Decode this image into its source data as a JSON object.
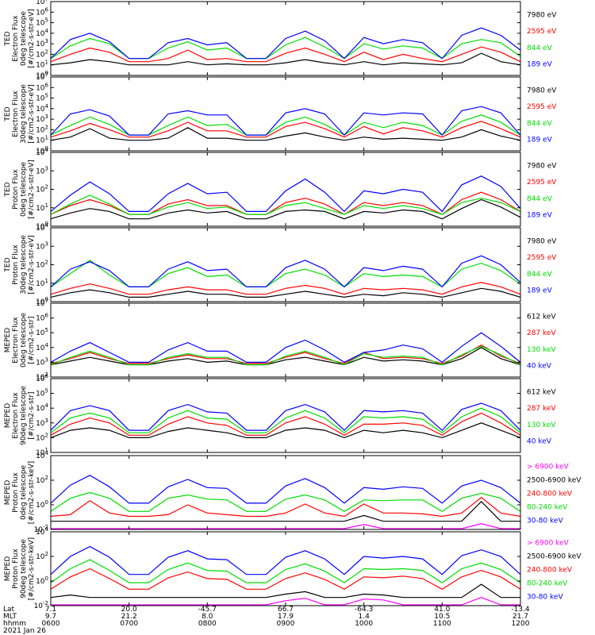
{
  "chart_data": [
    {
      "type": "line",
      "ylabel": [
        "TED",
        "Electron Flux",
        "0deg telescope",
        "[#/cm2-s-str-eV]"
      ],
      "ylog": [
        0,
        7
      ],
      "ytick_labels": [
        "10^0",
        "10^1",
        "10^2",
        "10^3",
        "10^4",
        "10^5",
        "10^6",
        "10^7"
      ],
      "series": [
        {
          "name": "7980 eV",
          "color": "#000000"
        },
        {
          "name": "2595 eV",
          "color": "#ff0000"
        },
        {
          "name": "844 eV",
          "color": "#00dd00"
        },
        {
          "name": "189 eV",
          "color": "#0000ff"
        }
      ],
      "levels": [
        [
          1.0,
          1.2,
          1.5,
          1.3,
          1.0,
          1.0,
          1.0,
          1.3,
          1.0,
          1.1,
          1.0,
          1.0,
          1.2,
          1.5,
          1.2,
          1.0,
          1.3,
          1.0,
          1.2,
          1.1,
          1.0,
          1.2,
          2.1,
          1.3,
          1.0
        ],
        [
          1.3,
          2.0,
          2.6,
          2.2,
          1.3,
          1.3,
          1.6,
          2.4,
          1.5,
          1.6,
          1.3,
          1.3,
          2.1,
          2.6,
          2.0,
          1.3,
          2.2,
          1.5,
          2.0,
          1.6,
          1.3,
          2.0,
          2.7,
          2.2,
          1.3
        ],
        [
          1.6,
          2.8,
          3.5,
          3.0,
          1.6,
          1.6,
          2.6,
          3.2,
          2.4,
          2.6,
          1.6,
          1.6,
          2.9,
          3.6,
          2.7,
          1.6,
          3.0,
          2.5,
          2.8,
          2.6,
          1.6,
          3.0,
          3.4,
          3.1,
          1.8
        ],
        [
          1.6,
          3.4,
          4.0,
          3.2,
          1.6,
          1.6,
          3.1,
          3.5,
          2.9,
          3.1,
          1.6,
          1.6,
          3.5,
          4.2,
          3.3,
          1.6,
          3.6,
          3.0,
          3.4,
          3.1,
          1.6,
          3.8,
          4.5,
          3.8,
          2.4
        ]
      ]
    },
    {
      "type": "line",
      "ylabel": [
        "TED",
        "Electron Flux",
        "30deg telescope",
        "[#/cm2-s-str-eV]"
      ],
      "ylog": [
        0,
        7
      ],
      "ytick_labels": [
        "10^0",
        "10^1",
        "10^2",
        "10^3",
        "10^4",
        "10^5",
        "10^6",
        "10^7"
      ],
      "series": [
        {
          "name": "7980 eV",
          "color": "#000000"
        },
        {
          "name": "2595 eV",
          "color": "#ff0000"
        },
        {
          "name": "844 eV",
          "color": "#00dd00"
        },
        {
          "name": "189 eV",
          "color": "#0000ff"
        }
      ],
      "levels": [
        [
          1.0,
          1.3,
          2.1,
          1.2,
          1.0,
          1.0,
          1.2,
          2.2,
          1.2,
          1.2,
          1.0,
          1.0,
          1.4,
          1.7,
          1.3,
          1.0,
          1.3,
          1.1,
          1.2,
          1.1,
          1.0,
          1.3,
          2.0,
          1.4,
          1.0
        ],
        [
          1.3,
          1.9,
          2.6,
          2.0,
          1.3,
          1.3,
          1.9,
          2.7,
          1.9,
          1.9,
          1.3,
          1.3,
          2.3,
          2.7,
          2.1,
          1.3,
          2.3,
          1.6,
          2.2,
          1.9,
          1.3,
          2.2,
          2.8,
          2.1,
          1.3
        ],
        [
          1.5,
          2.4,
          3.2,
          2.5,
          1.5,
          1.5,
          2.4,
          3.2,
          2.4,
          2.5,
          1.5,
          1.5,
          2.7,
          3.2,
          2.5,
          1.5,
          2.7,
          2.2,
          2.7,
          2.4,
          1.5,
          2.8,
          3.4,
          2.7,
          1.5
        ],
        [
          1.5,
          3.5,
          3.9,
          3.3,
          1.5,
          1.5,
          3.5,
          3.8,
          3.4,
          3.4,
          1.5,
          1.5,
          3.6,
          4.0,
          3.5,
          1.5,
          3.6,
          3.4,
          3.6,
          3.5,
          1.5,
          3.8,
          4.2,
          3.6,
          1.5
        ]
      ]
    },
    {
      "type": "line",
      "ylabel": [
        "TED",
        "Proton Flux",
        "0deg telescope",
        "[#/cm2-s-str-eV]"
      ],
      "ylog": [
        0,
        5
      ],
      "ytick_labels": [
        "10^0",
        "10^1",
        "10^2",
        "10^3",
        "10^4"
      ],
      "series": [
        {
          "name": "7980 eV",
          "color": "#000000"
        },
        {
          "name": "2595 eV",
          "color": "#ff0000"
        },
        {
          "name": "844 eV",
          "color": "#00dd00"
        },
        {
          "name": "189 eV",
          "color": "#0000ff"
        }
      ],
      "levels": [
        [
          0.5,
          0.9,
          1.2,
          1.0,
          0.5,
          0.5,
          0.9,
          1.1,
          0.9,
          1.0,
          0.5,
          0.5,
          1.0,
          1.1,
          1.0,
          0.5,
          1.0,
          0.9,
          1.1,
          1.0,
          0.5,
          1.2,
          1.8,
          1.3,
          0.6
        ],
        [
          0.8,
          1.4,
          1.8,
          1.4,
          0.8,
          0.8,
          1.5,
          1.8,
          1.4,
          1.4,
          0.8,
          0.8,
          1.6,
          1.9,
          1.5,
          0.8,
          1.6,
          1.4,
          1.6,
          1.4,
          0.8,
          1.8,
          2.3,
          1.8,
          1.0
        ],
        [
          0.8,
          1.5,
          2.1,
          1.5,
          0.8,
          0.8,
          1.3,
          1.6,
          1.2,
          1.3,
          0.8,
          0.8,
          1.4,
          1.6,
          1.2,
          0.8,
          1.4,
          1.2,
          1.4,
          1.2,
          0.8,
          1.6,
          1.9,
          1.6,
          1.0
        ],
        [
          1.0,
          2.1,
          3.0,
          2.2,
          1.0,
          1.0,
          2.2,
          2.9,
          2.2,
          2.3,
          1.0,
          1.0,
          2.4,
          3.2,
          2.3,
          1.0,
          2.4,
          2.2,
          2.5,
          2.3,
          1.0,
          2.8,
          3.4,
          2.7,
          1.2
        ]
      ]
    },
    {
      "type": "line",
      "ylabel": [
        "TED",
        "Proton Flux",
        "30deg telescope",
        "[#/cm2-s-str-eV]"
      ],
      "ylog": [
        0,
        5
      ],
      "ytick_labels": [
        "10^0",
        "10^1",
        "10^2",
        "10^3",
        "10^4"
      ],
      "series": [
        {
          "name": "7980 eV",
          "color": "#000000"
        },
        {
          "name": "2595 eV",
          "color": "#ff0000"
        },
        {
          "name": "844 eV",
          "color": "#00dd00"
        },
        {
          "name": "189 eV",
          "color": "#0000ff"
        }
      ],
      "levels": [
        [
          0.3,
          0.6,
          0.8,
          0.6,
          0.3,
          0.3,
          0.5,
          0.7,
          0.5,
          0.5,
          0.3,
          0.3,
          0.5,
          0.7,
          0.5,
          0.3,
          0.5,
          0.4,
          0.6,
          0.5,
          0.3,
          0.6,
          0.9,
          0.7,
          0.3
        ],
        [
          0.5,
          0.9,
          1.2,
          0.9,
          0.5,
          0.5,
          0.8,
          1.0,
          0.8,
          0.8,
          0.5,
          0.5,
          0.9,
          1.1,
          0.9,
          0.5,
          0.9,
          0.8,
          0.9,
          0.8,
          0.5,
          1.0,
          1.3,
          1.0,
          0.5
        ],
        [
          1.0,
          1.9,
          2.8,
          1.8,
          1.0,
          1.0,
          1.9,
          2.3,
          1.7,
          1.8,
          1.0,
          1.0,
          1.9,
          2.2,
          1.8,
          1.0,
          1.9,
          1.7,
          1.8,
          1.7,
          1.0,
          2.2,
          2.6,
          2.1,
          1.2
        ],
        [
          1.0,
          2.2,
          2.7,
          2.1,
          1.0,
          1.0,
          2.2,
          2.7,
          2.1,
          2.2,
          1.0,
          1.0,
          2.3,
          2.8,
          2.2,
          1.0,
          2.3,
          2.1,
          2.4,
          2.2,
          1.0,
          2.6,
          3.1,
          2.5,
          1.3
        ]
      ]
    },
    {
      "type": "line",
      "ylabel": [
        "MEPED",
        "Electron Flux",
        "0deg telescope",
        "[#/cm2-s-str]"
      ],
      "ylog": [
        1,
        7
      ],
      "ytick_labels": [
        "10^2",
        "10^3",
        "10^4",
        "10^5",
        "10^6",
        "10^7"
      ],
      "series": [
        {
          "name": "612 keV",
          "color": "#000000"
        },
        {
          "name": "287 keV",
          "color": "#ff0000"
        },
        {
          "name": "130 keV",
          "color": "#00dd00"
        },
        {
          "name": "40 keV",
          "color": "#0000ff"
        }
      ],
      "levels": [
        [
          2.0,
          2.3,
          2.6,
          2.3,
          2.0,
          2.0,
          2.3,
          2.5,
          2.2,
          2.3,
          2.0,
          2.0,
          2.4,
          2.6,
          2.3,
          2.0,
          2.6,
          2.3,
          2.4,
          2.3,
          2.0,
          2.5,
          3.4,
          2.5,
          2.0
        ],
        [
          2.1,
          2.5,
          3.0,
          2.5,
          2.1,
          2.1,
          2.5,
          2.8,
          2.5,
          2.5,
          2.1,
          2.1,
          2.6,
          3.0,
          2.5,
          2.1,
          3.0,
          2.5,
          2.6,
          2.5,
          2.1,
          2.7,
          3.6,
          2.7,
          2.1
        ],
        [
          2.0,
          2.6,
          3.1,
          2.6,
          2.0,
          2.0,
          2.6,
          2.9,
          2.6,
          2.6,
          2.0,
          2.0,
          2.7,
          3.1,
          2.6,
          2.0,
          2.9,
          2.6,
          2.7,
          2.6,
          2.0,
          2.8,
          3.5,
          2.8,
          2.0
        ],
        [
          2.2,
          3.1,
          3.8,
          3.0,
          2.2,
          2.2,
          3.2,
          3.8,
          3.1,
          3.1,
          2.2,
          2.2,
          3.4,
          4.0,
          3.2,
          2.2,
          3.0,
          3.2,
          3.6,
          3.3,
          2.2,
          3.5,
          4.6,
          3.5,
          2.2
        ]
      ]
    },
    {
      "type": "line",
      "ylabel": [
        "MEPED",
        "Electron Flux",
        "90deg telescope",
        "[#/cm2-s-str]"
      ],
      "ylog": [
        1,
        7
      ],
      "ytick_labels": [
        "10^1",
        "10^2",
        "10^3",
        "10^4",
        "10^5",
        "10^6"
      ],
      "series": [
        {
          "name": "612 keV",
          "color": "#000000"
        },
        {
          "name": "287 keV",
          "color": "#ff0000"
        },
        {
          "name": "130 keV",
          "color": "#00dd00"
        },
        {
          "name": "40 keV",
          "color": "#0000ff"
        }
      ],
      "levels": [
        [
          2.2,
          2.8,
          3.0,
          2.8,
          2.2,
          2.2,
          2.7,
          3.0,
          2.8,
          2.6,
          2.2,
          2.2,
          2.8,
          3.0,
          2.8,
          2.2,
          2.8,
          2.6,
          2.8,
          2.6,
          2.2,
          2.8,
          3.4,
          2.8,
          2.2
        ],
        [
          2.4,
          3.3,
          3.8,
          3.4,
          2.4,
          2.4,
          3.3,
          3.9,
          3.4,
          3.2,
          2.4,
          2.4,
          3.4,
          3.9,
          3.3,
          2.4,
          3.3,
          3.3,
          3.4,
          3.2,
          2.4,
          3.5,
          4.2,
          3.4,
          2.4
        ],
        [
          2.6,
          3.8,
          4.2,
          3.8,
          2.6,
          2.6,
          3.8,
          4.4,
          3.8,
          3.7,
          2.6,
          2.6,
          3.8,
          4.4,
          3.8,
          2.6,
          3.9,
          3.8,
          3.9,
          3.7,
          2.6,
          3.9,
          4.6,
          3.9,
          2.6
        ],
        [
          2.8,
          4.4,
          4.8,
          4.4,
          2.8,
          2.8,
          4.4,
          4.9,
          4.3,
          4.2,
          2.8,
          2.8,
          4.4,
          4.9,
          4.3,
          2.8,
          4.4,
          4.3,
          4.4,
          4.2,
          2.8,
          4.5,
          5.0,
          4.4,
          2.8
        ]
      ]
    },
    {
      "type": "line",
      "ylabel": [
        "MEPED",
        "Proton Flux",
        "0deg telescope",
        "[#/cm2-s-str-keV]"
      ],
      "ylog": [
        -3,
        6
      ],
      "ytick_labels": [
        "10^-2",
        "10^0",
        "10^2",
        "10^4"
      ],
      "series": [
        {
          "name": "> 6900 keV",
          "color": "#ff00ff"
        },
        {
          "name": "2500-6900 keV",
          "color": "#000000"
        },
        {
          "name": "240-800 keV",
          "color": "#ff0000"
        },
        {
          "name": "80-240 keV",
          "color": "#00dd00"
        },
        {
          "name": "30-80 keV",
          "color": "#0000ff"
        }
      ],
      "levels": [
        [
          -2.9,
          -2.9,
          -2.9,
          -2.9,
          -2.9,
          -2.9,
          -2.9,
          -2.9,
          -2.9,
          -2.9,
          -2.9,
          -2.9,
          -2.9,
          -2.9,
          -2.9,
          -2.9,
          -2.4,
          -2.9,
          -2.9,
          -2.9,
          -2.9,
          -2.9,
          -2.3,
          -2.9,
          -2.9
        ],
        [
          -2.0,
          -2.0,
          -2.0,
          -2.0,
          -2.0,
          -2.0,
          -2.0,
          -2.0,
          -2.0,
          -2.0,
          -2.0,
          -2.0,
          -2.0,
          -2.0,
          -2.0,
          -2.0,
          -1.3,
          -2.0,
          -2.0,
          -2.0,
          -2.0,
          -2.0,
          0.4,
          -2.0,
          -2.0
        ],
        [
          -1.4,
          -1.2,
          0.5,
          -1.0,
          -1.4,
          -1.4,
          -1.2,
          0.0,
          -1.0,
          -1.2,
          -1.4,
          -1.4,
          -1.0,
          0.1,
          -1.0,
          -1.4,
          0.1,
          -1.0,
          -1.0,
          -1.1,
          -1.4,
          -1.0,
          0.9,
          -1.0,
          -1.4
        ],
        [
          -0.8,
          0.8,
          1.5,
          0.8,
          -0.8,
          -0.8,
          0.8,
          1.2,
          0.7,
          0.6,
          -0.8,
          -0.8,
          0.7,
          1.2,
          0.6,
          -0.8,
          0.6,
          0.5,
          0.6,
          0.6,
          -0.8,
          0.8,
          1.4,
          0.8,
          -0.8
        ],
        [
          0.2,
          2.4,
          3.6,
          2.2,
          0.2,
          0.2,
          2.2,
          3.1,
          2.1,
          2.0,
          0.2,
          0.2,
          2.3,
          3.2,
          2.1,
          0.2,
          2.1,
          1.9,
          2.2,
          2.0,
          0.2,
          2.3,
          3.0,
          2.1,
          0.2
        ]
      ]
    },
    {
      "type": "line",
      "ylabel": [
        "MEPED",
        "Proton Flux",
        "90deg telescope",
        "[#/cm2-s-str-keV]"
      ],
      "ylog": [
        -3,
        6
      ],
      "ytick_labels": [
        "10^-2",
        "10^0",
        "10^2",
        "10^4"
      ],
      "series": [
        {
          "name": "> 6900 keV",
          "color": "#ff00ff"
        },
        {
          "name": "2500-6900 keV",
          "color": "#000000"
        },
        {
          "name": "240-800 keV",
          "color": "#ff0000"
        },
        {
          "name": "80-240 keV",
          "color": "#00dd00"
        },
        {
          "name": "30-80 keV",
          "color": "#0000ff"
        }
      ],
      "levels": [
        [
          -2.9,
          -2.9,
          -2.9,
          -2.9,
          -2.9,
          -2.9,
          -2.9,
          -2.9,
          -2.9,
          -2.9,
          -2.9,
          -2.9,
          -2.4,
          -2.1,
          -2.9,
          -2.9,
          -2.2,
          -2.3,
          -2.9,
          -2.9,
          -2.9,
          -2.9,
          -2.0,
          -2.9,
          -2.9
        ],
        [
          -2.0,
          -1.7,
          -2.0,
          -2.0,
          -2.0,
          -2.0,
          -2.0,
          -2.0,
          -2.0,
          -2.0,
          -2.0,
          -2.0,
          -1.6,
          -1.3,
          -2.0,
          -2.0,
          -1.6,
          -1.7,
          -2.0,
          -2.0,
          -2.0,
          -2.0,
          -0.4,
          -2.0,
          -2.0
        ],
        [
          -1.0,
          0.5,
          1.5,
          0.3,
          -1.0,
          -1.0,
          0.4,
          1.1,
          0.3,
          0.2,
          -1.0,
          -1.0,
          0.3,
          1.0,
          0.2,
          -1.0,
          0.5,
          0.4,
          0.6,
          0.3,
          -1.0,
          0.5,
          1.3,
          0.5,
          -1.0
        ],
        [
          -0.2,
          1.5,
          2.6,
          1.3,
          -0.2,
          -0.2,
          1.4,
          2.2,
          1.3,
          1.2,
          -0.2,
          -0.2,
          1.4,
          2.1,
          1.2,
          -0.2,
          1.5,
          1.4,
          1.5,
          1.3,
          -0.2,
          1.5,
          2.2,
          1.4,
          -0.2
        ],
        [
          0.8,
          3.0,
          4.2,
          2.9,
          0.8,
          0.8,
          2.9,
          3.7,
          2.7,
          2.6,
          0.8,
          0.8,
          2.9,
          3.7,
          2.7,
          0.8,
          3.0,
          2.8,
          3.0,
          2.7,
          0.8,
          3.1,
          3.8,
          3.0,
          0.8
        ]
      ]
    }
  ],
  "x_axis": {
    "rows": [
      {
        "label": "Lat",
        "values": [
          "7.1",
          "20.0",
          "-45.7",
          "66.7",
          "-64.3",
          "41.0",
          "-13.4"
        ]
      },
      {
        "label": "MLT",
        "values": [
          "9.7",
          "21.2",
          "8.0",
          "17.9",
          "1.4",
          "10.5",
          "21.7"
        ]
      },
      {
        "label": "hhmm",
        "values": [
          "0600",
          "0700",
          "0800",
          "0900",
          "1000",
          "1100",
          "1200"
        ]
      }
    ],
    "date": "2021 Jan 26"
  }
}
